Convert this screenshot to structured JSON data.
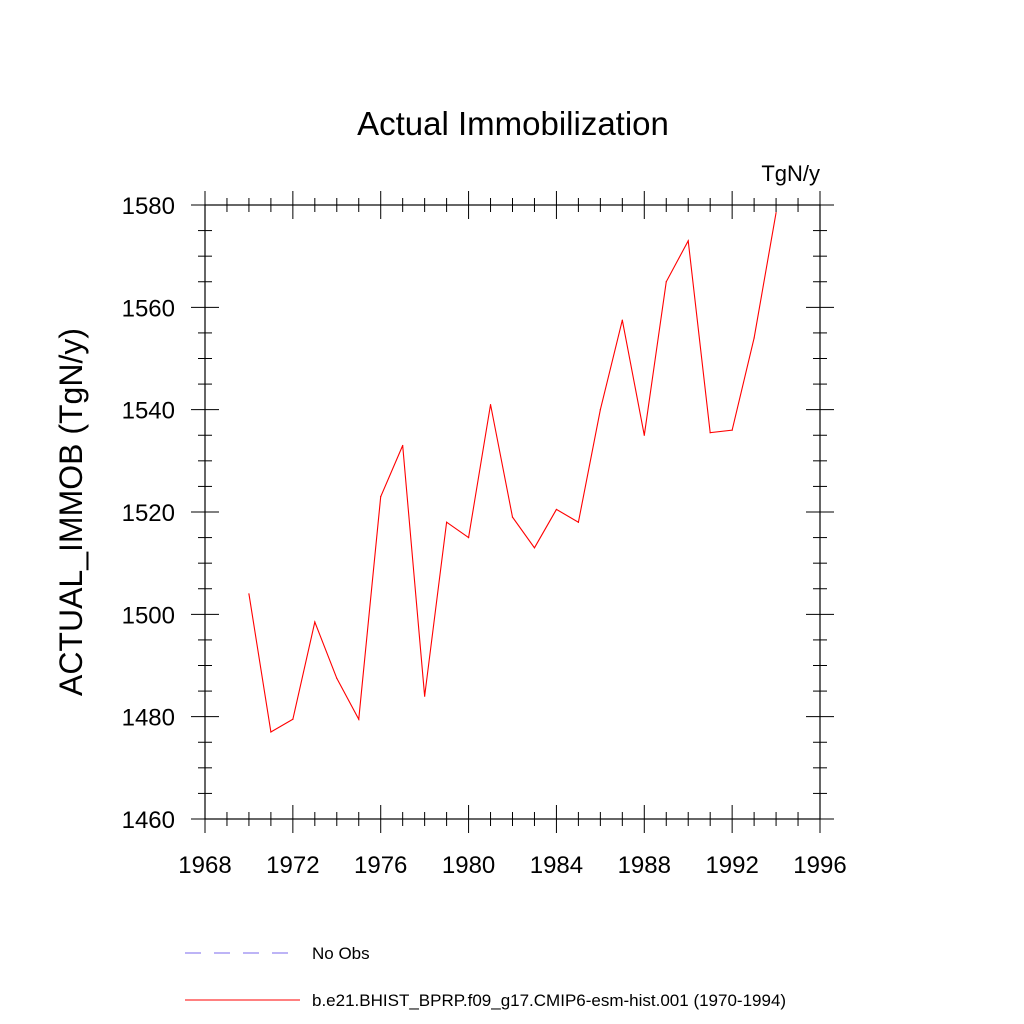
{
  "chart_data": {
    "type": "line",
    "title": "Actual Immobilization",
    "units_label": "TgN/y",
    "xlabel": "",
    "ylabel": "ACTUAL_IMMOB  (TgN/y)",
    "xlim": [
      1968,
      1996
    ],
    "ylim": [
      1460,
      1580
    ],
    "x_ticks": [
      1968,
      1972,
      1976,
      1980,
      1984,
      1988,
      1992,
      1996
    ],
    "x_tick_labels": [
      "1968",
      "1972",
      "1976",
      "1980",
      "1984",
      "1988",
      "1992",
      "1996"
    ],
    "y_ticks": [
      1460,
      1480,
      1500,
      1520,
      1540,
      1560,
      1580
    ],
    "y_tick_labels": [
      "1460",
      "1480",
      "1500",
      "1520",
      "1540",
      "1560",
      "1580"
    ],
    "x_minor_step": 1,
    "y_minor_step": 5,
    "grid": false,
    "legend_position": "bottom",
    "legend": [
      {
        "label": "No Obs",
        "color": "#7b68ee",
        "dash": true
      },
      {
        "label": "b.e21.BHIST_BPRP.f09_g17.CMIP6-esm-hist.001 (1970-1994)",
        "color": "#ff0000",
        "dash": false
      }
    ],
    "series": [
      {
        "name": "b.e21.BHIST_BPRP.f09_g17.CMIP6-esm-hist.001 (1970-1994)",
        "color": "#ff0000",
        "x": [
          1970,
          1971,
          1972,
          1973,
          1974,
          1975,
          1976,
          1977,
          1978,
          1979,
          1980,
          1981,
          1982,
          1983,
          1984,
          1985,
          1986,
          1987,
          1988,
          1989,
          1990,
          1991,
          1992,
          1993,
          1994
        ],
        "values": [
          1504,
          1477,
          1479.5,
          1498.5,
          1487.5,
          1479.5,
          1523,
          1533,
          1484,
          1518,
          1515,
          1541,
          1519,
          1513,
          1520.5,
          1518,
          1540,
          1557.5,
          1535,
          1565,
          1573,
          1535.5,
          1536,
          1554,
          1578.5
        ]
      }
    ]
  }
}
